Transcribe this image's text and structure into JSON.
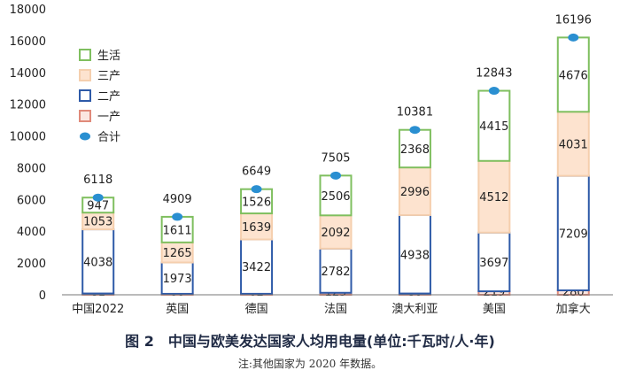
{
  "chart_data": {
    "type": "bar",
    "stacked": true,
    "categories": [
      "中国2022",
      "英国",
      "德国",
      "法国",
      "澳大利亚",
      "美国",
      "加拿大"
    ],
    "series": [
      {
        "name": "一产",
        "values": [
          81,
          60,
          62,
          125,
          80,
          219,
          280
        ],
        "fill": "#fbe6e0",
        "stroke": "#e08a7a"
      },
      {
        "name": "二产",
        "values": [
          4038,
          1973,
          3422,
          2782,
          4938,
          3697,
          7209
        ],
        "fill": "#ffffff",
        "stroke": "#2e5aa8"
      },
      {
        "name": "三产",
        "values": [
          1053,
          1265,
          1639,
          2092,
          2996,
          4512,
          4031
        ],
        "fill": "#fde3cf",
        "stroke": "#f5cfae"
      },
      {
        "name": "生活",
        "values": [
          947,
          1611,
          1526,
          2506,
          2368,
          4415,
          4676
        ],
        "fill": "#ffffff",
        "stroke": "#7fbf5f"
      }
    ],
    "totals": {
      "name": "合计",
      "values": [
        6118,
        4909,
        6649,
        7505,
        10381,
        12843,
        16196
      ],
      "color": "#2a8fd1"
    },
    "ylim": [
      0,
      18000
    ],
    "yticks": [
      0,
      2000,
      4000,
      6000,
      8000,
      10000,
      12000,
      14000,
      16000,
      18000
    ],
    "legend_order": [
      "生活",
      "三产",
      "二产",
      "一产",
      "合计"
    ],
    "legend_position": "top-left",
    "grid": false
  },
  "caption": "图 2　中国与欧美发达国家人均用电量(单位:千瓦时/人·年)",
  "note": "注:其他国家为 2020 年数据。"
}
